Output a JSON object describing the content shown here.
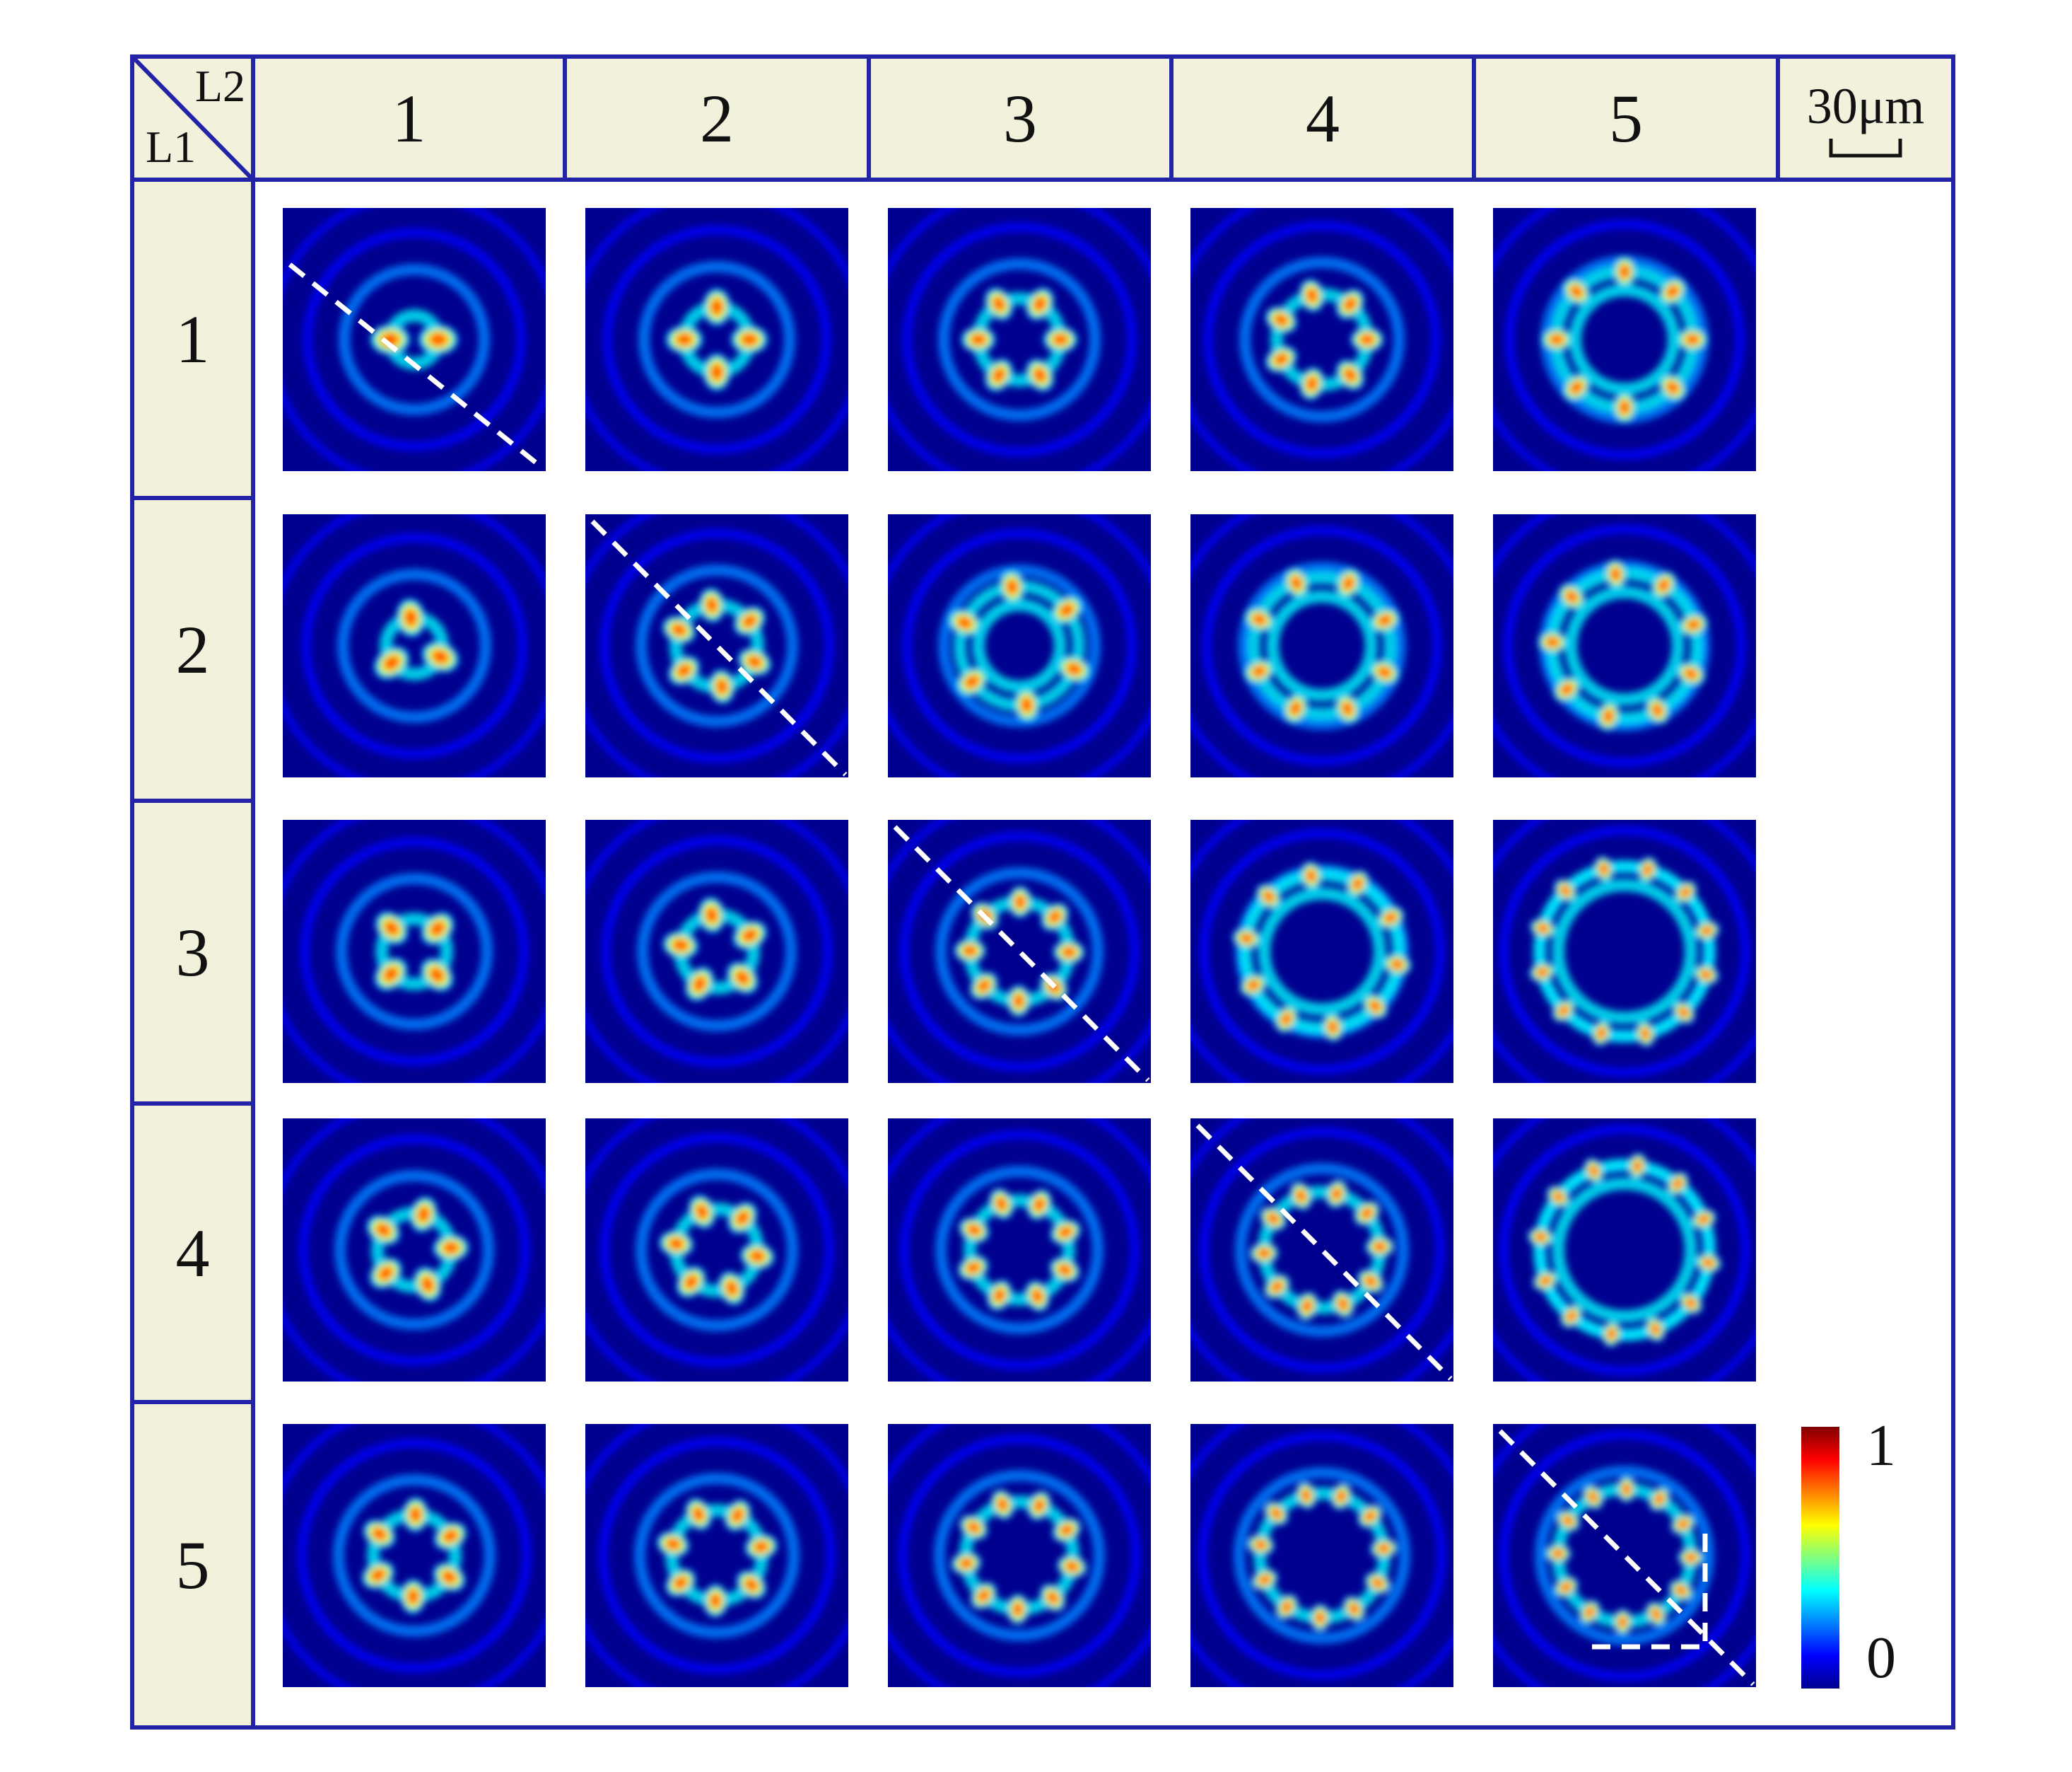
{
  "corner": {
    "top_label": "L2",
    "bottom_label": "L1"
  },
  "column_headers": [
    "1",
    "2",
    "3",
    "4",
    "5"
  ],
  "row_headers": [
    "1",
    "2",
    "3",
    "4",
    "5"
  ],
  "scale_bar": {
    "label": "30μm"
  },
  "colorbar": {
    "max_label": "1",
    "min_label": "0",
    "colormap": [
      "#00008f",
      "#0000ff",
      "#0080ff",
      "#00ffff",
      "#80ff80",
      "#ffff00",
      "#ff8000",
      "#ff0000",
      "#800000"
    ]
  },
  "colors": {
    "frame": "#2323a8",
    "header_fill": "#f2f2dc",
    "background": "#00008f"
  },
  "patterns": [
    [
      {
        "lobes": 2,
        "rings": 1,
        "diag": true
      },
      {
        "lobes": 4,
        "rings": 1
      },
      {
        "lobes": 6,
        "rings": 1
      },
      {
        "lobes": 7,
        "rings": 1
      },
      {
        "lobes": 8,
        "rings": 2
      }
    ],
    [
      {
        "lobes": 3,
        "rings": 1
      },
      {
        "lobes": 6,
        "rings": 1,
        "diag": true
      },
      {
        "lobes": 6,
        "rings": 2
      },
      {
        "lobes": 8,
        "rings": 2
      },
      {
        "lobes": 9,
        "rings": 2
      }
    ],
    [
      {
        "lobes": 4,
        "rings": 1
      },
      {
        "lobes": 5,
        "rings": 1
      },
      {
        "lobes": 8,
        "rings": 1,
        "diag": true
      },
      {
        "lobes": 10,
        "rings": 2
      },
      {
        "lobes": 12,
        "rings": 2
      }
    ],
    [
      {
        "lobes": 5,
        "rings": 1
      },
      {
        "lobes": 6,
        "rings": 1
      },
      {
        "lobes": 8,
        "rings": 1
      },
      {
        "lobes": 10,
        "rings": 1,
        "diag": true
      },
      {
        "lobes": 12,
        "rings": 2
      }
    ],
    [
      {
        "lobes": 6,
        "rings": 1
      },
      {
        "lobes": 7,
        "rings": 1
      },
      {
        "lobes": 9,
        "rings": 1
      },
      {
        "lobes": 11,
        "rings": 1
      },
      {
        "lobes": 12,
        "rings": 1,
        "diag": true,
        "corner_box": true
      }
    ]
  ]
}
